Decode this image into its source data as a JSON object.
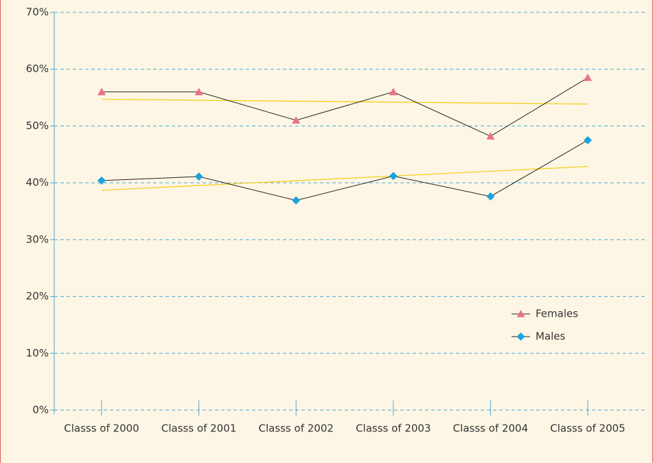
{
  "chart_data": {
    "type": "line",
    "categories": [
      "Classs of 2000",
      "Classs of 2001",
      "Classs of 2002",
      "Classs of 2003",
      "Classs of 2004",
      "Classs of 2005"
    ],
    "series": [
      {
        "name": "Females",
        "color": "#e8718d",
        "marker": "triangle",
        "values": [
          56,
          56,
          51,
          56,
          48.2,
          58.5
        ]
      },
      {
        "name": "Males",
        "color": "#1ba3e0",
        "marker": "diamond",
        "values": [
          40.4,
          41.1,
          36.9,
          41.2,
          37.6,
          47.5
        ]
      }
    ],
    "ylim": [
      0,
      70
    ],
    "yticks": [
      {
        "value": 0,
        "label": "0%"
      },
      {
        "value": 10,
        "label": "10%"
      },
      {
        "value": 20,
        "label": "20%"
      },
      {
        "value": 30,
        "label": "30%"
      },
      {
        "value": 40,
        "label": "40%"
      },
      {
        "value": 50,
        "label": "50%"
      },
      {
        "value": 60,
        "label": "60%"
      },
      {
        "value": 70,
        "label": "70%"
      }
    ],
    "grid": true,
    "trendline": true,
    "trendline_color": "#f5d020",
    "legend": "lower right"
  }
}
